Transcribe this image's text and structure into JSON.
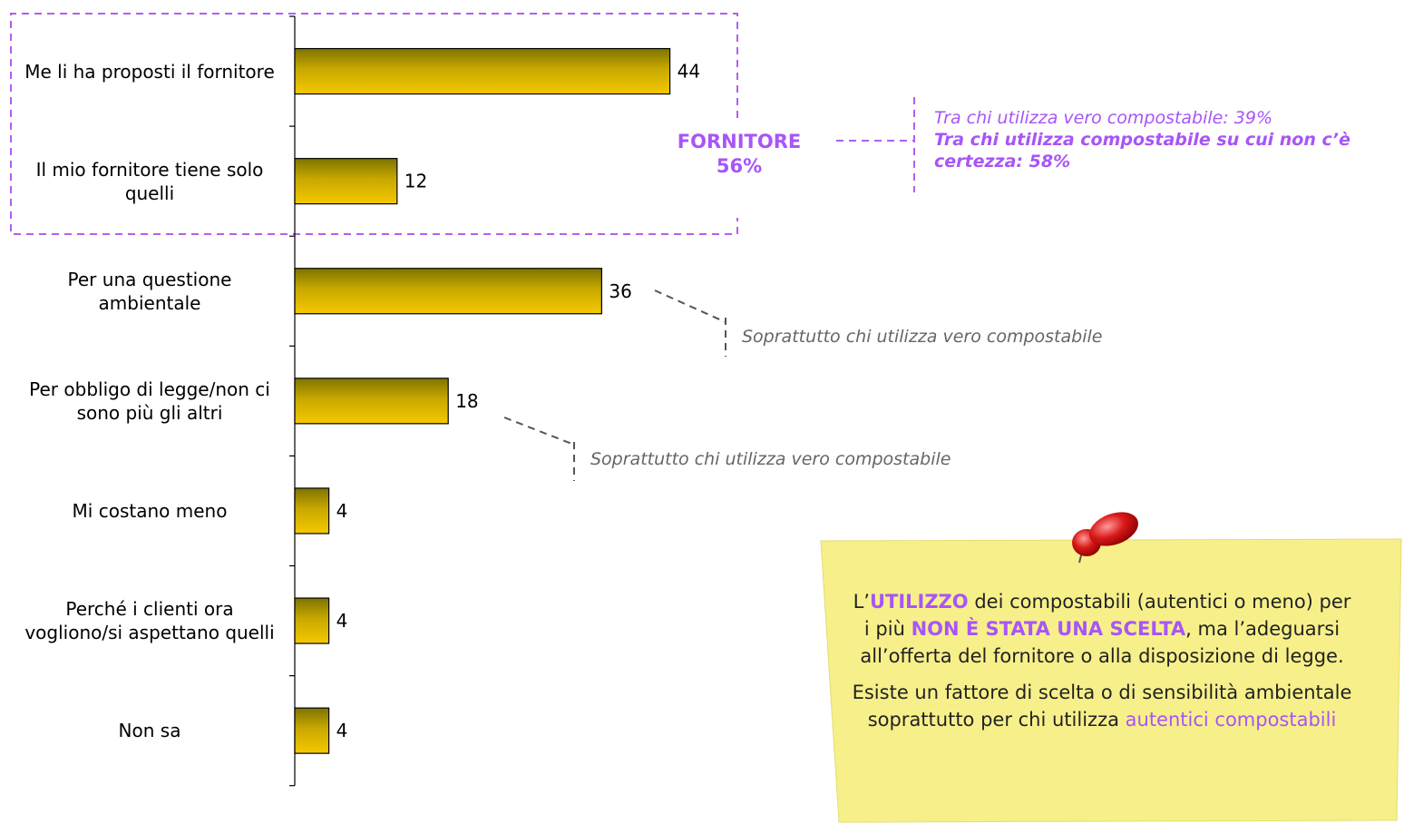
{
  "chart_data": {
    "type": "bar",
    "orientation": "horizontal",
    "categories": [
      "Me li ha proposti il fornitore",
      "Il mio fornitore tiene solo quelli",
      "Per una questione ambientale",
      "Per obbligo di legge/non ci sono più gli altri",
      "Mi costano meno",
      "Perché i clienti ora vogliono/si aspettano quelli",
      "Non sa"
    ],
    "values": [
      44,
      12,
      36,
      18,
      4,
      4,
      4
    ],
    "color": "#f5c800",
    "group_annotation": {
      "label": "FORNITORE",
      "value_text": "56%"
    },
    "group_notes": [
      "Tra chi utilizza vero compostabile: 39%",
      "Tra chi utilizza compostabile su cui non c’è certezza: 58%"
    ],
    "annotations": [
      "Soprattutto chi utilizza vero compostabile",
      "Soprattutto chi utilizza vero compostabile"
    ],
    "note": [
      [
        "L’",
        "UTILIZZO",
        " dei compostabili (autentici o meno) per i più ",
        "NON È STATA UNA SCELTA",
        ", ma l’adeguarsi all’offerta del fornitore o alla disposizione di legge."
      ],
      [
        "Esiste un fattore di scelta o di sensibilità ambientale soprattutto per chi utilizza ",
        "autentici compostabili"
      ]
    ]
  }
}
